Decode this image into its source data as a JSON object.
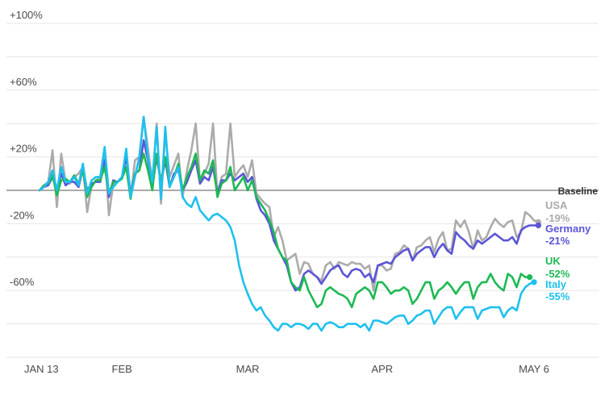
{
  "chart_data": {
    "type": "line",
    "ylim": [
      -100,
      100
    ],
    "y_ticks": [
      {
        "value": 100,
        "label": "+100%"
      },
      {
        "value": 60,
        "label": "+60%"
      },
      {
        "value": 20,
        "label": "+20%"
      },
      {
        "value": -20,
        "label": "-20%"
      },
      {
        "value": -60,
        "label": "-60%"
      }
    ],
    "x_ticks": [
      {
        "day": 0,
        "label": "JAN 13"
      },
      {
        "day": 19,
        "label": "FEB"
      },
      {
        "day": 48,
        "label": "MAR"
      },
      {
        "day": 79,
        "label": "APR"
      },
      {
        "day": 114,
        "label": "MAY 6"
      }
    ],
    "xlim": [
      0,
      114
    ],
    "baseline": {
      "value": 0,
      "label": "Baseline"
    },
    "grid": true,
    "series": [
      {
        "name": "USA",
        "end_label": "-19%",
        "color": "#ababab",
        "values": [
          0,
          3,
          5,
          24,
          -10,
          22,
          5,
          4,
          8,
          10,
          14,
          -13,
          3,
          6,
          8,
          25,
          -15,
          4,
          5,
          7,
          22,
          -5,
          18,
          20,
          44,
          25,
          5,
          40,
          -8,
          35,
          8,
          15,
          22,
          -4,
          12,
          24,
          40,
          5,
          10,
          16,
          40,
          -2,
          8,
          10,
          40,
          8,
          12,
          15,
          8,
          18,
          -2,
          -5,
          -8,
          -10,
          -28,
          -22,
          -30,
          -42,
          -40,
          -38,
          -50,
          -43,
          -44,
          -50,
          -52,
          -54,
          -45,
          -43,
          -47,
          -43,
          -44,
          -45,
          -43,
          -44,
          -44,
          -47,
          -45,
          -60,
          -45,
          -45,
          -48,
          -47,
          -38,
          -37,
          -33,
          -35,
          -42,
          -34,
          -33,
          -30,
          -28,
          -37,
          -29,
          -25,
          -36,
          -35,
          -18,
          -22,
          -18,
          -25,
          -35,
          -24,
          -30,
          -28,
          -22,
          -17,
          -20,
          -22,
          -19,
          -18,
          -28,
          -25,
          -13,
          -15,
          -18,
          -19
        ]
      },
      {
        "name": "Germany",
        "end_label": "-21%",
        "color": "#5b55d6",
        "values": [
          0,
          2,
          3,
          8,
          0,
          10,
          3,
          5,
          5,
          2,
          13,
          0,
          4,
          5,
          5,
          18,
          -4,
          6,
          5,
          8,
          20,
          -2,
          10,
          12,
          30,
          18,
          3,
          20,
          5,
          18,
          2,
          10,
          12,
          0,
          5,
          12,
          18,
          4,
          8,
          6,
          14,
          -2,
          6,
          6,
          10,
          6,
          8,
          10,
          5,
          8,
          -5,
          -12,
          -15,
          -20,
          -30,
          -35,
          -40,
          -45,
          -55,
          -60,
          -58,
          -50,
          -48,
          -50,
          -52,
          -56,
          -52,
          -48,
          -46,
          -45,
          -50,
          -52,
          -48,
          -47,
          -48,
          -52,
          -50,
          -55,
          -45,
          -44,
          -43,
          -44,
          -40,
          -38,
          -36,
          -35,
          -42,
          -38,
          -36,
          -34,
          -34,
          -40,
          -35,
          -32,
          -36,
          -38,
          -25,
          -28,
          -30,
          -33,
          -35,
          -30,
          -32,
          -30,
          -28,
          -26,
          -28,
          -30,
          -30,
          -28,
          -32,
          -24,
          -22,
          -21,
          -21,
          -21
        ]
      },
      {
        "name": "UK",
        "end_label": "-52%",
        "color": "#1db954",
        "values": [
          0,
          3,
          4,
          9,
          -3,
          6,
          7,
          5,
          9,
          4,
          12,
          -4,
          2,
          6,
          6,
          14,
          -2,
          5,
          5,
          7,
          14,
          -5,
          10,
          12,
          22,
          12,
          0,
          22,
          5,
          20,
          3,
          8,
          16,
          0,
          8,
          14,
          22,
          6,
          12,
          10,
          18,
          -4,
          4,
          6,
          14,
          0,
          4,
          8,
          0,
          6,
          -4,
          -8,
          -12,
          -18,
          -25,
          -35,
          -40,
          -42,
          -55,
          -58,
          -60,
          -52,
          -60,
          -65,
          -70,
          -68,
          -60,
          -58,
          -60,
          -62,
          -63,
          -65,
          -70,
          -62,
          -60,
          -58,
          -60,
          -65,
          -55,
          -55,
          -58,
          -62,
          -60,
          -60,
          -58,
          -60,
          -68,
          -65,
          -60,
          -55,
          -55,
          -65,
          -60,
          -58,
          -55,
          -58,
          -62,
          -58,
          -55,
          -55,
          -65,
          -58,
          -55,
          -55,
          -50,
          -55,
          -58,
          -60,
          -50,
          -52,
          -58,
          -50,
          -52,
          -52
        ]
      },
      {
        "name": "Italy",
        "end_label": "-55%",
        "color": "#1ec0ee",
        "values": [
          0,
          2,
          5,
          12,
          0,
          14,
          5,
          5,
          8,
          3,
          16,
          -2,
          6,
          8,
          8,
          26,
          -2,
          2,
          5,
          8,
          25,
          -4,
          8,
          20,
          44,
          20,
          5,
          38,
          -5,
          38,
          2,
          8,
          14,
          -4,
          -8,
          -10,
          -4,
          -12,
          -15,
          -18,
          -15,
          -14,
          -16,
          -18,
          -22,
          -30,
          -45,
          -55,
          -62,
          -68,
          -72,
          -70,
          -75,
          -78,
          -82,
          -84,
          -80,
          -80,
          -82,
          -80,
          -80,
          -81,
          -83,
          -80,
          -80,
          -84,
          -80,
          -79,
          -80,
          -82,
          -82,
          -80,
          -80,
          -80,
          -82,
          -80,
          -84,
          -78,
          -78,
          -79,
          -80,
          -78,
          -76,
          -75,
          -75,
          -80,
          -78,
          -75,
          -74,
          -72,
          -72,
          -80,
          -76,
          -72,
          -70,
          -70,
          -77,
          -73,
          -70,
          -70,
          -70,
          -77,
          -72,
          -71,
          -70,
          -70,
          -70,
          -76,
          -72,
          -70,
          -72,
          -62,
          -58,
          -56,
          -55
        ]
      }
    ]
  }
}
